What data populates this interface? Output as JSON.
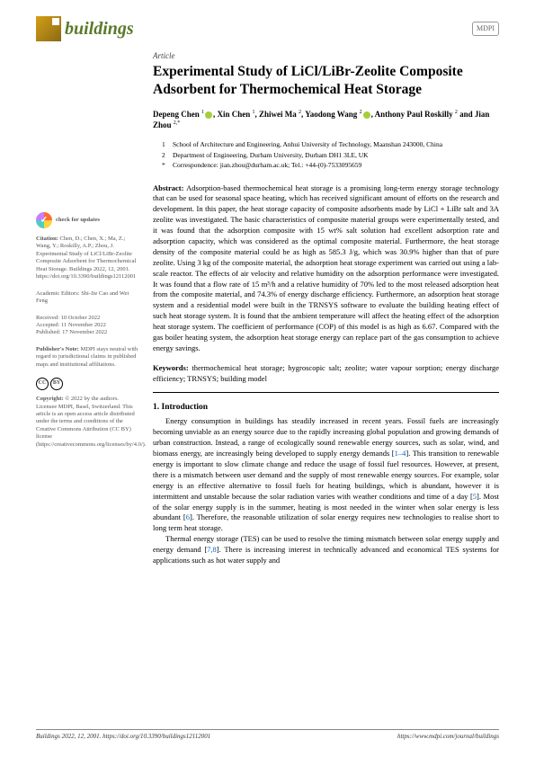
{
  "journal": {
    "name": "buildings",
    "publisher_badge": "MDPI"
  },
  "article": {
    "type": "Article",
    "title": "Experimental Study of LiCl/LiBr-Zeolite Composite Adsorbent for Thermochemical Heat Storage",
    "authors_html": "Depeng Chen ¹⊙, Xin Chen ¹, Zhiwei Ma ², Yaodong Wang ²⊙, Anthony Paul Roskilly ² and Jian Zhou ²·*",
    "authors": [
      {
        "name": "Depeng Chen",
        "affil": "1",
        "orcid": true
      },
      {
        "name": "Xin Chen",
        "affil": "1",
        "orcid": false
      },
      {
        "name": "Zhiwei Ma",
        "affil": "2",
        "orcid": false
      },
      {
        "name": "Yaodong Wang",
        "affil": "2",
        "orcid": true
      },
      {
        "name": "Anthony Paul Roskilly",
        "affil": "2",
        "orcid": false
      },
      {
        "name": "Jian Zhou",
        "affil": "2,*",
        "orcid": false
      }
    ],
    "affiliations": [
      {
        "num": "1",
        "text": "School of Architecture and Engineering, Anhui University of Technology, Maanshan 243000, China"
      },
      {
        "num": "2",
        "text": "Department of Engineering, Durham University, Durham DH1 3LE, UK"
      },
      {
        "num": "*",
        "text": "Correspondence: jian.zhou@durham.ac.uk; Tel.: +44-(0)-7533095659"
      }
    ],
    "abstract_label": "Abstract:",
    "abstract": "Adsorption-based thermochemical heat storage is a promising long-term energy storage technology that can be used for seasonal space heating, which has received significant amount of efforts on the research and development. In this paper, the heat storage capacity of composite adsorbents made by LiCl + LiBr salt and 3A zeolite was investigated. The basic characteristics of composite material groups were experimentally tested, and it was found that the adsorption composite with 15 wt% salt solution had excellent adsorption rate and adsorption capacity, which was considered as the optimal composite material. Furthermore, the heat storage density of the composite material could be as high as 585.3 J/g, which was 30.9% higher than that of pure zeolite. Using 3 kg of the composite material, the adsorption heat storage experiment was carried out using a lab-scale reactor. The effects of air velocity and relative humidity on the adsorption performance were investigated. It was found that a flow rate of 15 m³/h and a relative humidity of 70% led to the most released adsorption heat from the composite material, and 74.3% of energy discharge efficiency. Furthermore, an adsorption heat storage system and a residential model were built in the TRNSYS software to evaluate the building heating effect of such heat storage system. It is found that the ambient temperature will affect the heating effect of the adsorption heat storage system. The coefficient of performance (COP) of this model is as high as 6.67. Compared with the gas boiler heating system, the adsorption heat storage energy can replace part of the gas consumption to achieve energy savings.",
    "keywords_label": "Keywords:",
    "keywords": "thermochemical heat storage; hygroscopic salt; zeolite; water vapour sorption; energy discharge efficiency; TRNSYS; building model"
  },
  "sidebar": {
    "check_updates": "check for updates",
    "citation_label": "Citation:",
    "citation": "Chen, D.; Chen, X.; Ma, Z.; Wang, Y.; Roskilly, A.P.; Zhou, J. Experimental Study of LiCl/LiBr-Zeolite Composite Adsorbent for Thermochemical Heat Storage. Buildings 2022, 12, 2001. https://doi.org/10.3390/buildings12112001",
    "editors_label": "Academic Editors:",
    "editors": "Shi-Jie Cao and Wei Feng",
    "received": "Received: 10 October 2022",
    "accepted": "Accepted: 11 November 2022",
    "published": "Published: 17 November 2022",
    "pub_note_label": "Publisher's Note:",
    "pub_note": "MDPI stays neutral with regard to jurisdictional claims in published maps and institutional affiliations.",
    "copyright_label": "Copyright:",
    "copyright": "© 2022 by the authors. Licensee MDPI, Basel, Switzerland. This article is an open access article distributed under the terms and conditions of the Creative Commons Attribution (CC BY) license (https://creativecommons.org/licenses/by/4.0/)."
  },
  "section1": {
    "title": "1. Introduction",
    "p1": "Energy consumption in buildings has steadily increased in recent years. Fossil fuels are increasingly becoming unviable as an energy source due to the rapidly increasing global population and growing demands of urban construction. Instead, a range of ecologically sound renewable energy sources, such as solar, wind, and biomass energy, are increasingly being developed to supply energy demands [1–4]. This transition to renewable energy is important to slow climate change and reduce the usage of fossil fuel resources. However, at present, there is a mismatch between user demand and the supply of most renewable energy sources. For example, solar energy is an effective alternative to fossil fuels for heating buildings, which is abundant, however it is intermittent and unstable because the solar radiation varies with weather conditions and time of a day [5]. Most of the solar energy supply is in the summer, heating is most needed in the winter when solar energy is less abundant [6]. Therefore, the reasonable utilization of solar energy requires new technologies to realise short to long term heat storage.",
    "p2": "Thermal energy storage (TES) can be used to resolve the timing mismatch between solar energy supply and energy demand [7,8]. There is increasing interest in technically advanced and economical TES systems for applications such as hot water supply and"
  },
  "footer": {
    "left": "Buildings 2022, 12, 2001. https://doi.org/10.3390/buildings12112001",
    "right": "https://www.mdpi.com/journal/buildings"
  },
  "colors": {
    "journal_green": "#5a7a2a",
    "link_blue": "#0066cc",
    "logo_gold": "#d4a017"
  }
}
